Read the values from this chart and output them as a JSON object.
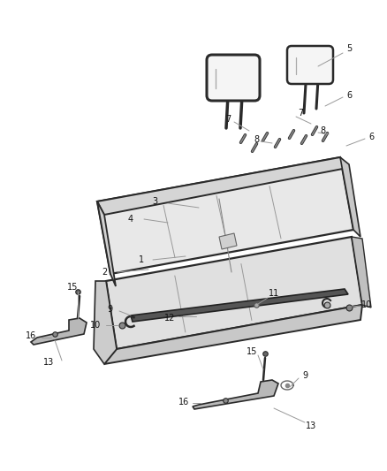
{
  "background_color": "#ffffff",
  "line_color": "#2a2a2a",
  "gray_line": "#999999",
  "seat_fill": "#e8e8e8",
  "seat_dark": "#c8c8c8",
  "seat_side": "#d0d0d0",
  "bracket_fill": "#b8b8b8",
  "screw_color": "#333333",
  "rail_fill": "#444444",
  "label_fontsize": 7.0,
  "figsize": [
    4.38,
    5.33
  ],
  "dpi": 100
}
